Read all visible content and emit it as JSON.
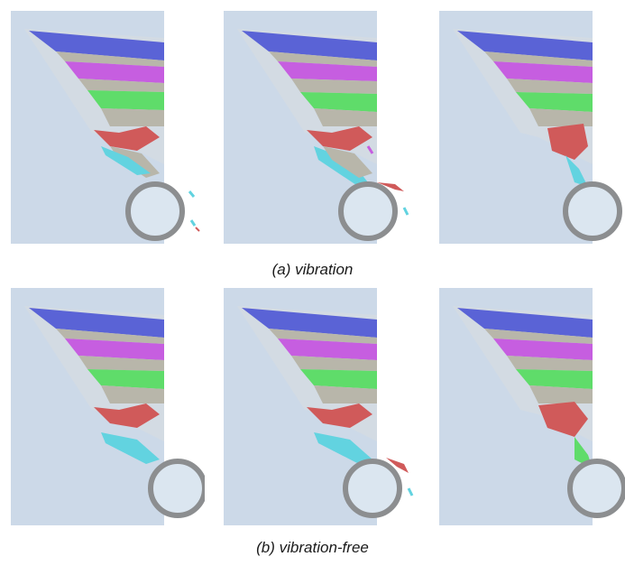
{
  "captions": {
    "top": "(a)    vibration",
    "bottom": "(b) vibration-free"
  },
  "colors": {
    "background": "#ccd9e8",
    "blue_layer": "#5a63d6",
    "magenta_layer": "#c65ee0",
    "green_layer": "#5fdc6a",
    "red_layer": "#d05a5a",
    "cyan_layer": "#62d3e0",
    "gray_layer": "#b8b6aa",
    "drum_ring": "#8c8e90",
    "drum_fill": "#dbe6f0"
  },
  "panels": [
    {
      "row": "top",
      "discharge": "low"
    },
    {
      "row": "top",
      "discharge": "medium"
    },
    {
      "row": "top",
      "discharge": "high"
    },
    {
      "row": "bottom",
      "discharge": "low"
    },
    {
      "row": "bottom",
      "discharge": "medium"
    },
    {
      "row": "bottom",
      "discharge": "high"
    }
  ]
}
